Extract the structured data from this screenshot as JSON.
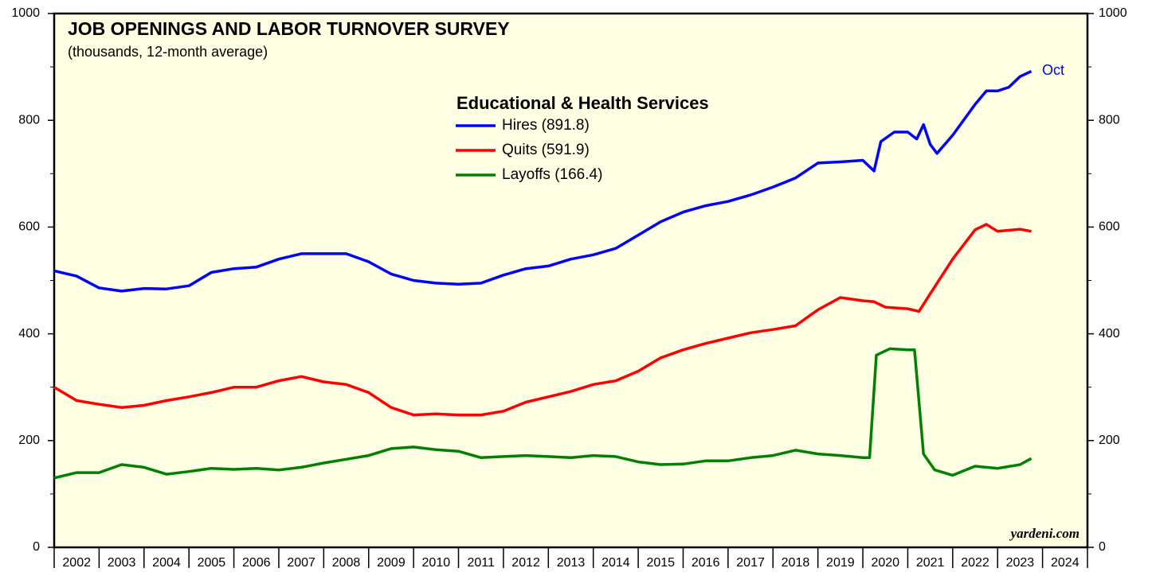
{
  "chart_data": {
    "type": "line",
    "title": "JOB OPENINGS AND LABOR TURNOVER SURVEY",
    "subtitle": "(thousands, 12-month average)",
    "legend_title": "Educational & Health Services",
    "annotations": [
      "Oct",
      "yardeni.com"
    ],
    "xlim": [
      2002,
      2025
    ],
    "xticks": [
      2002,
      2003,
      2004,
      2005,
      2006,
      2007,
      2008,
      2009,
      2010,
      2011,
      2012,
      2013,
      2014,
      2015,
      2016,
      2017,
      2018,
      2019,
      2020,
      2021,
      2022,
      2023,
      2024
    ],
    "ylim": [
      0,
      1000
    ],
    "yticks": [
      0,
      200,
      400,
      600,
      800,
      1000
    ],
    "yticks_minor": [
      100,
      300,
      500,
      700,
      900
    ],
    "y2lim": [
      0,
      1000
    ],
    "y2ticks": [
      0,
      200,
      400,
      600,
      800,
      1000
    ],
    "background": "#ffffe3",
    "series": [
      {
        "name": "Hires (891.8)",
        "color": "#0000ff",
        "x": [
          2002.0,
          2002.5,
          2003.0,
          2003.5,
          2004.0,
          2004.5,
          2005.0,
          2005.5,
          2006.0,
          2006.5,
          2007.0,
          2007.5,
          2008.0,
          2008.5,
          2009.0,
          2009.5,
          2010.0,
          2010.5,
          2011.0,
          2011.5,
          2012.0,
          2012.5,
          2013.0,
          2013.5,
          2014.0,
          2014.5,
          2015.0,
          2015.5,
          2016.0,
          2016.5,
          2017.0,
          2017.5,
          2018.0,
          2018.5,
          2019.0,
          2019.5,
          2020.0,
          2020.25,
          2020.4,
          2020.7,
          2021.0,
          2021.2,
          2021.35,
          2021.5,
          2021.65,
          2022.0,
          2022.5,
          2022.75,
          2023.0,
          2023.25,
          2023.5,
          2023.75
        ],
        "values": [
          518,
          508,
          486,
          480,
          485,
          484,
          490,
          515,
          522,
          525,
          540,
          550,
          550,
          550,
          535,
          512,
          500,
          495,
          493,
          495,
          510,
          522,
          527,
          540,
          548,
          560,
          585,
          610,
          628,
          640,
          648,
          660,
          675,
          692,
          720,
          722,
          725,
          705,
          760,
          778,
          778,
          765,
          792,
          755,
          738,
          772,
          830,
          855,
          855,
          862,
          882,
          891.8
        ]
      },
      {
        "name": "Quits (591.9)",
        "color": "#ff0000",
        "x": [
          2002.0,
          2002.5,
          2003.0,
          2003.5,
          2004.0,
          2004.5,
          2005.0,
          2005.5,
          2006.0,
          2006.5,
          2007.0,
          2007.5,
          2008.0,
          2008.5,
          2009.0,
          2009.5,
          2010.0,
          2010.5,
          2011.0,
          2011.5,
          2012.0,
          2012.5,
          2013.0,
          2013.5,
          2014.0,
          2014.5,
          2015.0,
          2015.5,
          2016.0,
          2016.5,
          2017.0,
          2017.5,
          2018.0,
          2018.5,
          2019.0,
          2019.5,
          2020.0,
          2020.25,
          2020.5,
          2021.0,
          2021.25,
          2021.5,
          2022.0,
          2022.5,
          2022.75,
          2023.0,
          2023.5,
          2023.75
        ],
        "values": [
          300,
          275,
          268,
          262,
          266,
          275,
          282,
          290,
          300,
          300,
          312,
          320,
          310,
          305,
          290,
          262,
          248,
          250,
          248,
          248,
          255,
          272,
          282,
          292,
          305,
          312,
          330,
          355,
          370,
          382,
          392,
          402,
          408,
          415,
          445,
          468,
          462,
          460,
          450,
          447,
          442,
          475,
          540,
          595,
          605,
          592,
          596,
          591.9
        ]
      },
      {
        "name": "Layoffs (166.4)",
        "color": "#008000",
        "x": [
          2002.0,
          2002.5,
          2003.0,
          2003.5,
          2004.0,
          2004.5,
          2005.0,
          2005.5,
          2006.0,
          2006.5,
          2007.0,
          2007.5,
          2008.0,
          2008.5,
          2009.0,
          2009.5,
          2010.0,
          2010.5,
          2011.0,
          2011.5,
          2012.0,
          2012.5,
          2013.0,
          2013.5,
          2014.0,
          2014.5,
          2015.0,
          2015.5,
          2016.0,
          2016.5,
          2017.0,
          2017.5,
          2018.0,
          2018.5,
          2019.0,
          2019.5,
          2020.0,
          2020.15,
          2020.3,
          2020.6,
          2021.0,
          2021.15,
          2021.35,
          2021.6,
          2022.0,
          2022.5,
          2023.0,
          2023.5,
          2023.75
        ],
        "values": [
          130,
          140,
          140,
          155,
          150,
          137,
          142,
          148,
          146,
          148,
          145,
          150,
          158,
          165,
          172,
          185,
          188,
          183,
          180,
          168,
          170,
          172,
          170,
          168,
          172,
          170,
          160,
          155,
          156,
          162,
          162,
          168,
          172,
          182,
          175,
          172,
          168,
          168,
          360,
          372,
          370,
          370,
          175,
          145,
          135,
          152,
          148,
          155,
          166.4
        ]
      }
    ]
  }
}
